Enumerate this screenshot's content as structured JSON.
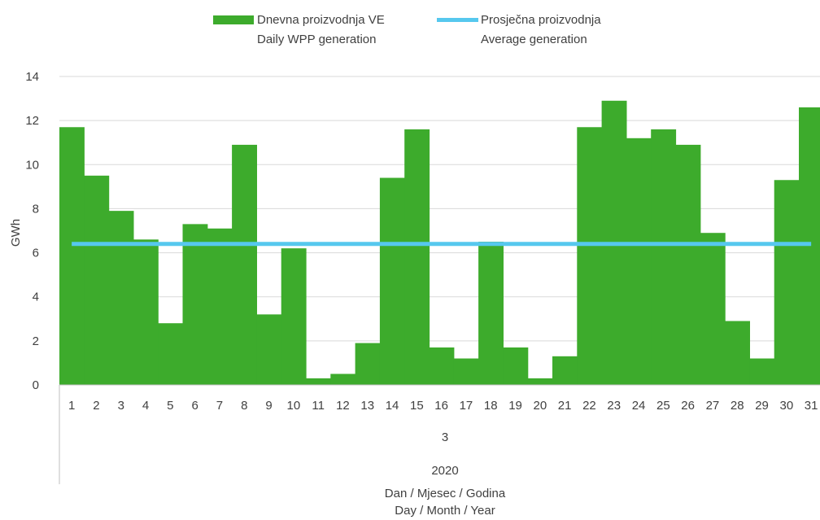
{
  "chart_data": {
    "type": "bar",
    "legend_position": "top",
    "grid": true,
    "colors": {
      "bars": "#3dab2c",
      "average_line": "#56c8ee",
      "grid": "#d9d9d9",
      "axis": "#bfbfbf"
    },
    "categories": [
      "1",
      "2",
      "3",
      "4",
      "5",
      "6",
      "7",
      "8",
      "9",
      "10",
      "11",
      "12",
      "13",
      "14",
      "15",
      "16",
      "17",
      "18",
      "19",
      "20",
      "21",
      "22",
      "23",
      "24",
      "25",
      "26",
      "27",
      "28",
      "29",
      "30",
      "31"
    ],
    "series": [
      {
        "name": "Dnevna proizvodnja VE",
        "name_en": "Daily WPP generation",
        "kind": "bar",
        "values": [
          11.7,
          9.5,
          7.9,
          6.6,
          2.8,
          7.3,
          7.1,
          10.9,
          3.2,
          6.2,
          0.3,
          0.5,
          1.9,
          9.4,
          11.6,
          1.7,
          1.2,
          6.5,
          1.7,
          0.3,
          1.3,
          11.7,
          12.9,
          11.2,
          11.6,
          10.9,
          6.9,
          2.9,
          1.2,
          9.3,
          12.6
        ]
      },
      {
        "name": "Prosječna proizvodnja",
        "name_en": "Average generation",
        "kind": "line",
        "values": [
          6.4,
          6.4,
          6.4,
          6.4,
          6.4,
          6.4,
          6.4,
          6.4,
          6.4,
          6.4,
          6.4,
          6.4,
          6.4,
          6.4,
          6.4,
          6.4,
          6.4,
          6.4,
          6.4,
          6.4,
          6.4,
          6.4,
          6.4,
          6.4,
          6.4,
          6.4,
          6.4,
          6.4,
          6.4,
          6.4,
          6.4
        ]
      }
    ],
    "ylabel": "GWh",
    "ylim": [
      0,
      14
    ],
    "yticks": [
      "0",
      "2",
      "4",
      "6",
      "8",
      "10",
      "12",
      "14"
    ],
    "month_label": "3",
    "year_label": "2020",
    "xlabel_line1": "Dan / Mjesec / Godina",
    "xlabel_line2": "Day / Month / Year"
  }
}
